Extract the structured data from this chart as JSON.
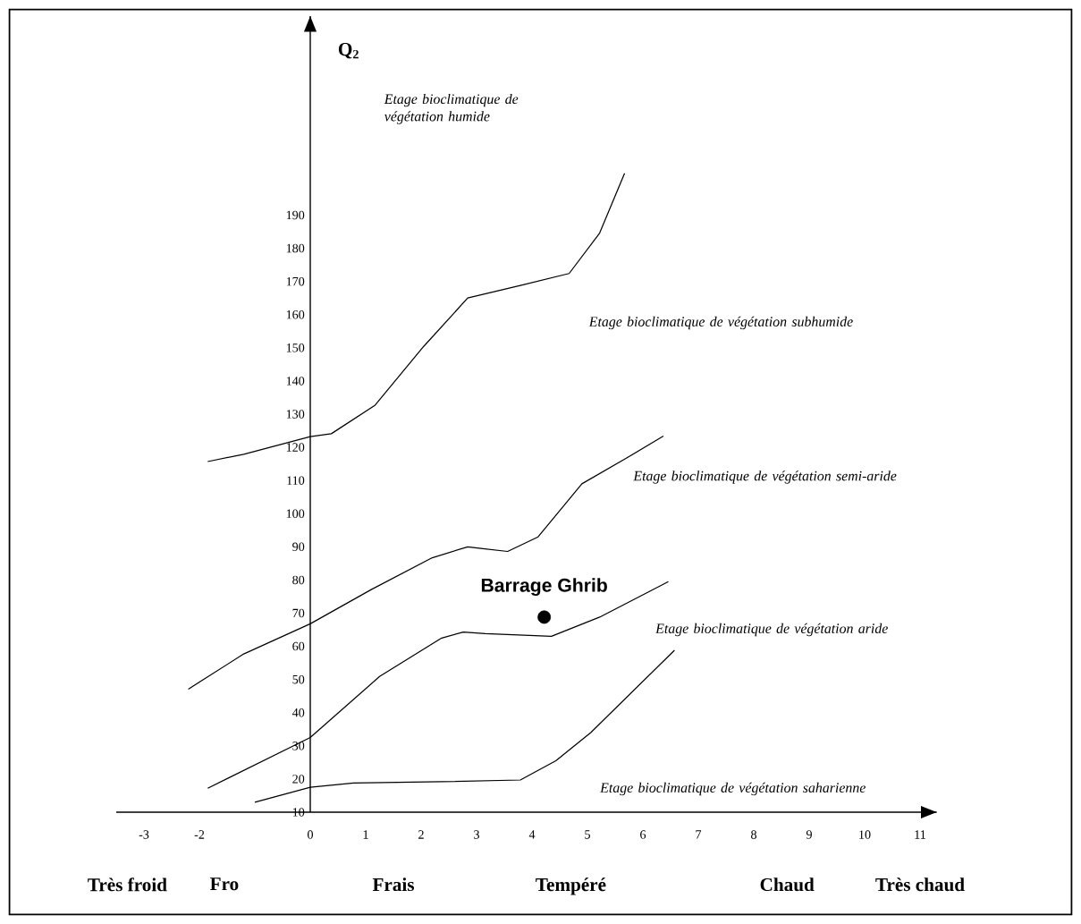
{
  "chart_data": {
    "type": "line",
    "ylabel": "Q$_{2}$",
    "marker": "none",
    "xlim": [
      -3.5,
      11.3
    ],
    "ylim": [
      10,
      250
    ],
    "xticks": [
      -3,
      -2,
      0,
      1,
      2,
      3,
      4,
      5,
      6,
      7,
      8,
      9,
      10,
      11
    ],
    "yticks": [
      10,
      20,
      30,
      40,
      50,
      60,
      70,
      80,
      90,
      100,
      110,
      120,
      130,
      140,
      150,
      160,
      170,
      180,
      190
    ],
    "series": [
      {
        "color": "#000000",
        "x": [
          -1.85,
          -1.2,
          0,
          0.38,
          1.17,
          2.05,
          2.84,
          3.79,
          4.67,
          5.22,
          5.67
        ],
        "values": [
          115.7,
          117.9,
          123.2,
          124.1,
          132.7,
          150.5,
          165,
          168.8,
          172.4,
          184.6,
          202.6
        ]
      },
      {
        "color": "#000000",
        "x": [
          -2.2,
          -1.2,
          0,
          1.1,
          2.2,
          2.84,
          3.08,
          3.56,
          4.11,
          4.9,
          5.7,
          6.37
        ],
        "values": [
          47.1,
          57.7,
          66.8,
          77.1,
          86.7,
          90,
          89.5,
          88.6,
          93,
          109,
          116.7,
          123.4
        ]
      },
      {
        "color": "#000000",
        "x": [
          -1.85,
          0,
          1.25,
          2.37,
          2.76,
          3.16,
          4.35,
          5.22,
          6.46
        ],
        "values": [
          17.2,
          32.5,
          50.9,
          62.5,
          64.3,
          63.8,
          63,
          68.8,
          79.5
        ]
      },
      {
        "color": "#000000",
        "x": [
          -1.0,
          0,
          0.78,
          2.37,
          3.79,
          4.43,
          5.06,
          6.57
        ],
        "values": [
          13,
          17.5,
          18.8,
          19.2,
          19.7,
          25.5,
          34,
          58.8
        ]
      },
      {
        "type": "scatter",
        "marker": "circle",
        "name": "Barrage Ghrib",
        "color": "#000000",
        "x": [
          4.22
        ],
        "values": [
          68.8
        ]
      }
    ],
    "annotations": [
      "Etage bioclimatique de végétation humide",
      "Etage bioclimatique de végétation subhumide",
      "Etage bioclimatique de végétation semi-aride",
      "Etage bioclimatique de végétation aride",
      "Etage bioclimatique de végétation saharienne",
      "Très froid",
      "Fro",
      "Frais",
      "Tempéré",
      "Chaud",
      "Très chaud"
    ]
  }
}
